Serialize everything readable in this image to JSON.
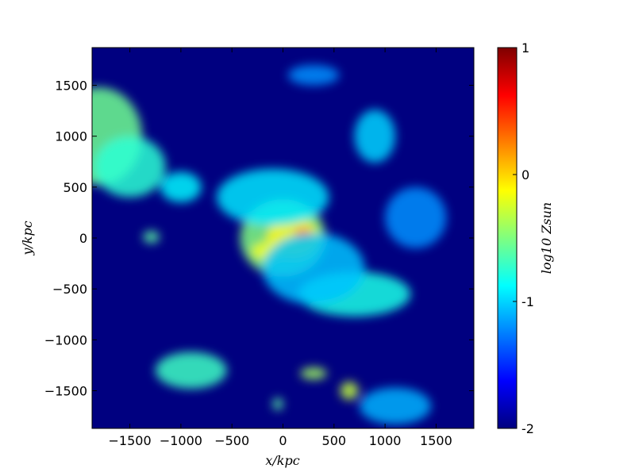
{
  "chart_data": {
    "type": "heatmap",
    "title": "",
    "xlabel": "x/kpc",
    "ylabel": "y/kpc",
    "xlim": [
      -1870,
      1870
    ],
    "ylim": [
      -1870,
      1870
    ],
    "x_ticks": [
      {
        "value": -1500,
        "label": "−1500"
      },
      {
        "value": -1000,
        "label": "−1000"
      },
      {
        "value": -500,
        "label": "−500"
      },
      {
        "value": 0,
        "label": "0"
      },
      {
        "value": 500,
        "label": "500"
      },
      {
        "value": 1000,
        "label": "1000"
      },
      {
        "value": 1500,
        "label": "1500"
      }
    ],
    "y_ticks": [
      {
        "value": 1500,
        "label": "1500"
      },
      {
        "value": 1000,
        "label": "1000"
      },
      {
        "value": 500,
        "label": "500"
      },
      {
        "value": 0,
        "label": "0"
      },
      {
        "value": -500,
        "label": "−500"
      },
      {
        "value": -1000,
        "label": "−1000"
      },
      {
        "value": -1500,
        "label": "−1500"
      }
    ],
    "colorbar": {
      "label": "log10 Zsun",
      "range": [
        -2,
        1
      ],
      "ticks": [
        {
          "value": 1,
          "label": "1"
        },
        {
          "value": 0,
          "label": "0"
        },
        {
          "value": -1,
          "label": "-1"
        },
        {
          "value": -2,
          "label": "-2"
        }
      ],
      "colormap": "jet"
    },
    "background_value": -2,
    "features": [
      {
        "x": 0,
        "y": 0,
        "sx": 420,
        "sy": 380,
        "value": -0.5
      },
      {
        "x": 100,
        "y": 0,
        "sx": 260,
        "sy": 200,
        "value": -0.1
      },
      {
        "x": -150,
        "y": -130,
        "sx": 160,
        "sy": 90,
        "value": -0.15
      },
      {
        "x": 200,
        "y": 40,
        "sx": 90,
        "sy": 60,
        "value": 0.3
      },
      {
        "x": -100,
        "y": 400,
        "sx": 550,
        "sy": 280,
        "value": -0.95
      },
      {
        "x": 700,
        "y": -550,
        "sx": 550,
        "sy": 220,
        "value": -0.8
      },
      {
        "x": 300,
        "y": -300,
        "sx": 500,
        "sy": 350,
        "value": -1.05
      },
      {
        "x": -1800,
        "y": 1000,
        "sx": 420,
        "sy": 480,
        "value": -0.55
      },
      {
        "x": -1500,
        "y": 700,
        "sx": 350,
        "sy": 300,
        "value": -0.75
      },
      {
        "x": 900,
        "y": 1000,
        "sx": 200,
        "sy": 260,
        "value": -1.0
      },
      {
        "x": -900,
        "y": -1300,
        "sx": 350,
        "sy": 180,
        "value": -0.7
      },
      {
        "x": 650,
        "y": -1500,
        "sx": 90,
        "sy": 90,
        "value": -0.3
      },
      {
        "x": 300,
        "y": -1330,
        "sx": 130,
        "sy": 60,
        "value": -0.4
      },
      {
        "x": -50,
        "y": -1630,
        "sx": 50,
        "sy": 60,
        "value": -0.6
      },
      {
        "x": 1100,
        "y": -1650,
        "sx": 350,
        "sy": 180,
        "value": -1.1
      },
      {
        "x": -1290,
        "y": 10,
        "sx": 80,
        "sy": 60,
        "value": -0.6
      },
      {
        "x": -1000,
        "y": 500,
        "sx": 200,
        "sy": 150,
        "value": -0.9
      },
      {
        "x": 300,
        "y": 1600,
        "sx": 250,
        "sy": 100,
        "value": -1.2
      },
      {
        "x": 1300,
        "y": 200,
        "sx": 300,
        "sy": 300,
        "value": -1.2
      }
    ]
  }
}
